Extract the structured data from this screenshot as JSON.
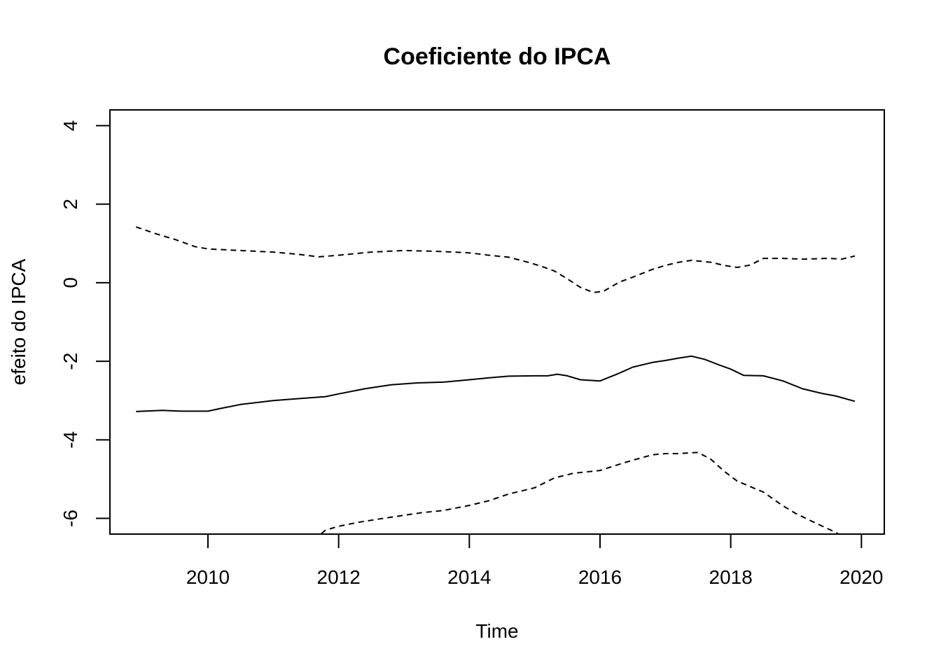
{
  "chart_data": {
    "type": "line",
    "title": "Coeficiente do IPCA",
    "xlabel": "Time",
    "ylabel": "efeito do IPCA",
    "xlim": [
      2008.5,
      2020.35
    ],
    "ylim": [
      -6.4,
      4.4
    ],
    "x_ticks": [
      2010,
      2012,
      2014,
      2016,
      2018,
      2020
    ],
    "y_ticks": [
      -6,
      -4,
      -2,
      0,
      2,
      4
    ],
    "grid": false,
    "legend": "none",
    "series": [
      {
        "style": "solid",
        "color": "#000000",
        "x": [
          2008.9,
          2009.3,
          2009.6,
          2010.0,
          2010.2,
          2010.5,
          2011.0,
          2011.4,
          2011.8,
          2012.0,
          2012.4,
          2012.8,
          2013.2,
          2013.6,
          2014.0,
          2014.3,
          2014.6,
          2015.0,
          2015.2,
          2015.35,
          2015.5,
          2015.7,
          2016.0,
          2016.3,
          2016.5,
          2016.8,
          2017.0,
          2017.2,
          2017.4,
          2017.6,
          2017.8,
          2018.0,
          2018.2,
          2018.5,
          2018.8,
          2019.1,
          2019.4,
          2019.6,
          2019.9
        ],
        "y": [
          -3.28,
          -3.25,
          -3.27,
          -3.27,
          -3.2,
          -3.1,
          -3.0,
          -2.95,
          -2.9,
          -2.83,
          -2.7,
          -2.6,
          -2.55,
          -2.53,
          -2.47,
          -2.42,
          -2.38,
          -2.37,
          -2.37,
          -2.33,
          -2.37,
          -2.47,
          -2.5,
          -2.3,
          -2.15,
          -2.03,
          -1.98,
          -1.92,
          -1.87,
          -1.95,
          -2.08,
          -2.2,
          -2.36,
          -2.37,
          -2.5,
          -2.7,
          -2.82,
          -2.88,
          -3.02
        ]
      },
      {
        "style": "dashed",
        "color": "#000000",
        "x": [
          2008.9,
          2009.2,
          2009.5,
          2009.8,
          2010.0,
          2010.5,
          2011.0,
          2011.4,
          2011.7,
          2012.0,
          2012.5,
          2013.0,
          2013.5,
          2014.0,
          2014.3,
          2014.6,
          2014.9,
          2015.1,
          2015.3,
          2015.5,
          2015.7,
          2015.9,
          2016.05,
          2016.3,
          2016.5,
          2016.8,
          2017.0,
          2017.2,
          2017.4,
          2017.7,
          2017.9,
          2018.1,
          2018.3,
          2018.5,
          2018.8,
          2019.1,
          2019.5,
          2019.7,
          2019.9
        ],
        "y": [
          1.42,
          1.25,
          1.1,
          0.92,
          0.86,
          0.82,
          0.78,
          0.72,
          0.66,
          0.7,
          0.78,
          0.82,
          0.8,
          0.76,
          0.7,
          0.65,
          0.52,
          0.42,
          0.3,
          0.1,
          -0.12,
          -0.25,
          -0.22,
          0.02,
          0.14,
          0.34,
          0.44,
          0.52,
          0.57,
          0.52,
          0.44,
          0.39,
          0.45,
          0.62,
          0.62,
          0.6,
          0.62,
          0.6,
          0.68
        ]
      },
      {
        "style": "dashed",
        "color": "#000000",
        "x": [
          2011.5,
          2011.8,
          2012.0,
          2012.3,
          2012.6,
          2013.0,
          2013.3,
          2013.6,
          2014.0,
          2014.3,
          2014.6,
          2015.0,
          2015.3,
          2015.6,
          2016.0,
          2016.3,
          2016.5,
          2016.8,
          2017.0,
          2017.2,
          2017.5,
          2017.7,
          2017.9,
          2018.1,
          2018.5,
          2018.8,
          2019.0,
          2019.3,
          2019.6,
          2019.9
        ],
        "y": [
          -6.7,
          -6.3,
          -6.2,
          -6.1,
          -6.02,
          -5.92,
          -5.85,
          -5.8,
          -5.67,
          -5.55,
          -5.38,
          -5.22,
          -4.97,
          -4.85,
          -4.78,
          -4.62,
          -4.52,
          -4.38,
          -4.35,
          -4.35,
          -4.32,
          -4.5,
          -4.8,
          -5.05,
          -5.33,
          -5.68,
          -5.88,
          -6.12,
          -6.35,
          -6.65
        ]
      }
    ]
  }
}
